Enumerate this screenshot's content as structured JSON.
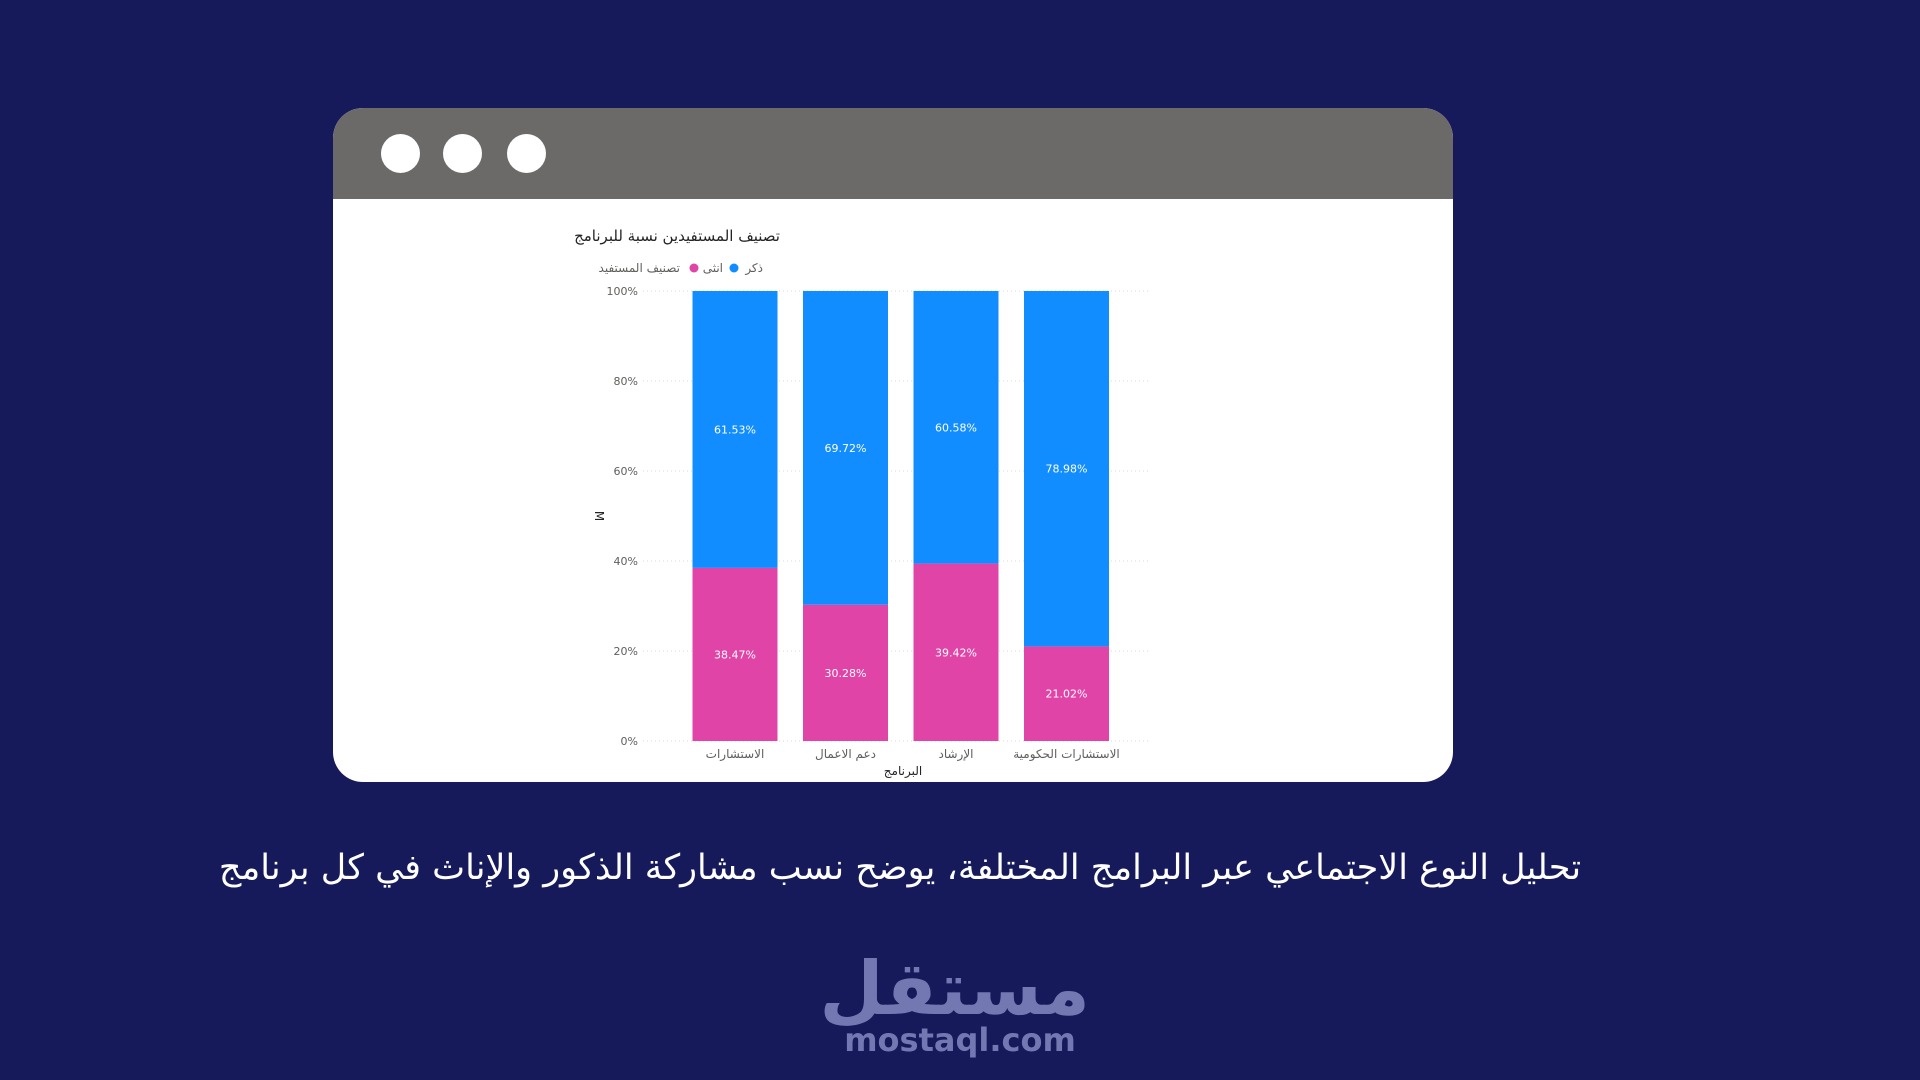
{
  "window": {
    "titlebar_color": "#6b6a68",
    "dots": [
      "dot",
      "dot",
      "dot"
    ]
  },
  "chart_data": {
    "type": "bar",
    "stacked": true,
    "title": "تصنيف المستفيدين نسبة للبرنامج",
    "legend_title": "تصنيف المستفيد",
    "legend_position": "top-left",
    "xlabel": "البرنامج",
    "ylabel": "M",
    "ylim": [
      0,
      100
    ],
    "yticks": [
      "0%",
      "20%",
      "40%",
      "60%",
      "80%",
      "100%"
    ],
    "categories": [
      "الاستشارات",
      "دعم الاعمال",
      "الإرشاد",
      "الاستشارات الحكومية"
    ],
    "series": [
      {
        "name": "انثى",
        "color": "#e044a7",
        "values": [
          38.47,
          30.28,
          39.42,
          21.02
        ],
        "labels": [
          "38.47%",
          "30.28%",
          "39.42%",
          "21.02%"
        ]
      },
      {
        "name": "ذكر",
        "color": "#118dff",
        "values": [
          61.53,
          69.72,
          60.58,
          78.98
        ],
        "labels": [
          "61.53%",
          "69.72%",
          "60.58%",
          "78.98%"
        ]
      }
    ],
    "grid": true
  },
  "caption": "تحليل النوع الاجتماعي عبر البرامج المختلفة، يوضح نسب مشاركة الذكور والإناث في كل برنامج",
  "logo": {
    "arabic": "مستقل",
    "latin": "mostaql.com",
    "color": "#7378b2"
  },
  "colors": {
    "background": "#161a5a",
    "card": "#ffffff"
  }
}
